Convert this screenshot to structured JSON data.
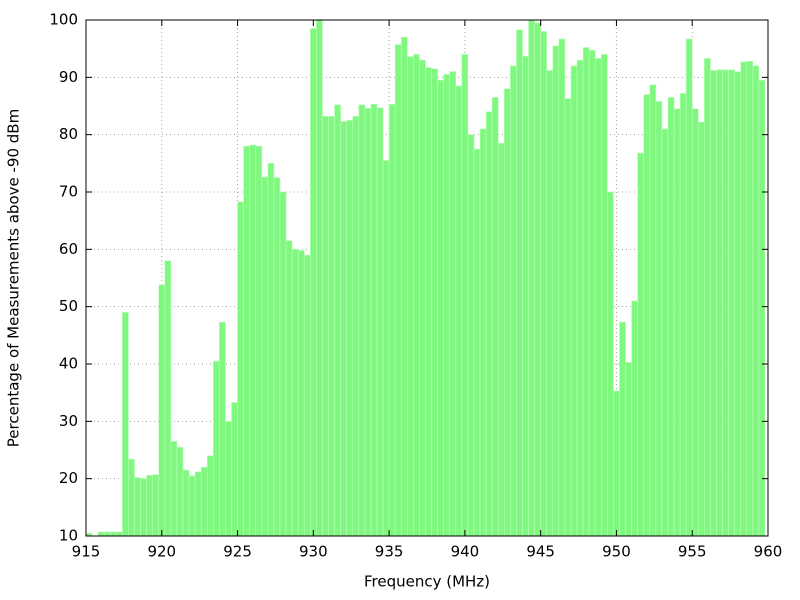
{
  "chart_data": {
    "type": "bar",
    "x_label": "Frequency (MHz)",
    "y_label": "Percentage of Measurements above -90 dBm",
    "x": [
      915.2,
      915.6,
      916.0,
      916.4,
      916.8,
      917.2,
      917.6,
      918.0,
      918.4,
      918.8,
      919.2,
      919.6,
      920.0,
      920.4,
      920.8,
      921.2,
      921.6,
      922.0,
      922.4,
      922.8,
      923.2,
      923.6,
      924.0,
      924.4,
      924.8,
      925.2,
      925.6,
      926.0,
      926.4,
      926.8,
      927.2,
      927.6,
      928.0,
      928.4,
      928.8,
      929.2,
      929.6,
      930.0,
      930.4,
      930.8,
      931.2,
      931.6,
      932.0,
      932.4,
      932.8,
      933.2,
      933.6,
      934.0,
      934.4,
      934.8,
      935.2,
      935.6,
      936.0,
      936.4,
      936.8,
      937.2,
      937.6,
      938.0,
      938.4,
      938.8,
      939.2,
      939.6,
      940.0,
      940.4,
      940.8,
      941.2,
      941.6,
      942.0,
      942.4,
      942.8,
      943.2,
      943.6,
      944.0,
      944.4,
      944.8,
      945.2,
      945.6,
      946.0,
      946.4,
      946.8,
      947.2,
      947.6,
      948.0,
      948.4,
      948.8,
      949.2,
      949.6,
      950.0,
      950.4,
      950.8,
      951.2,
      951.6,
      952.0,
      952.4,
      952.8,
      953.2,
      953.6,
      954.0,
      954.4,
      954.8,
      955.2,
      955.6,
      956.0,
      956.4,
      956.8,
      957.2,
      957.6,
      958.0,
      958.4,
      958.8,
      959.2,
      959.6
    ],
    "values": [
      10.5,
      9.8,
      10.7,
      10.7,
      10.7,
      10.7,
      49,
      23.4,
      20.2,
      20,
      20.6,
      20.7,
      53.8,
      58,
      26.5,
      25.5,
      21.5,
      20.5,
      21.2,
      22,
      24,
      40.5,
      47.3,
      30,
      33.3,
      68.3,
      78,
      78.2,
      78,
      72.6,
      75,
      72.5,
      70,
      61.5,
      60,
      59.8,
      59,
      98.5,
      100,
      83.2,
      83.2,
      85.2,
      82.3,
      82.5,
      83.2,
      85.2,
      84.6,
      85.3,
      84.7,
      75.5,
      85.3,
      95.7,
      97,
      93.6,
      94,
      93,
      91.7,
      91.5,
      89.5,
      90.5,
      91,
      88.5,
      94,
      80,
      77.5,
      81,
      84,
      86.5,
      78.5,
      88,
      92,
      98.3,
      93.7,
      100,
      99.5,
      98,
      91.2,
      95.5,
      96.7,
      86.3,
      92,
      93,
      95.2,
      94.7,
      93.3,
      94,
      70,
      35.3,
      47.3,
      40.3,
      51,
      76.8,
      87,
      88.7,
      85.8,
      81,
      86.5,
      84.5,
      87.2,
      96.7,
      84.5,
      82.2,
      93.3,
      91.2,
      91.3,
      91.3,
      91.3,
      91,
      92.7,
      92.8,
      92,
      89.5
    ],
    "color": "#80f880",
    "xlim": [
      915,
      960
    ],
    "xticks": [
      915,
      920,
      925,
      930,
      935,
      940,
      945,
      950,
      955,
      960
    ],
    "ylim": [
      10,
      100
    ],
    "yticks": [
      10,
      20,
      30,
      40,
      50,
      60,
      70,
      80,
      90,
      100
    ],
    "grid": true
  }
}
